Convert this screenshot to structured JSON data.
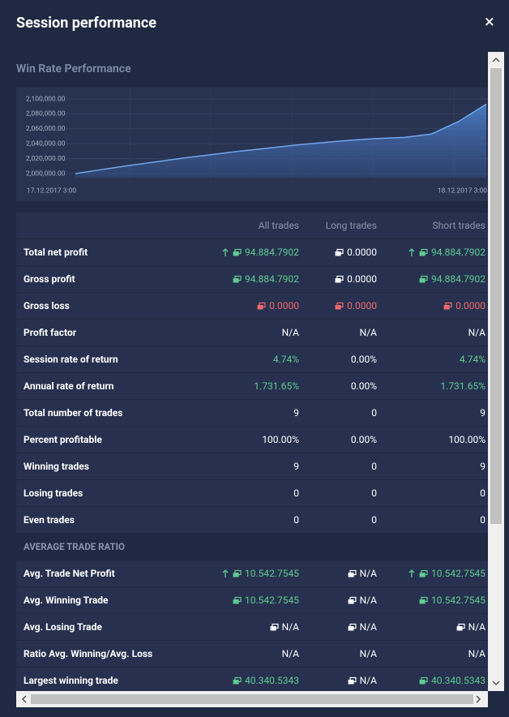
{
  "header": {
    "title": "Session performance",
    "close": "×"
  },
  "chart_section": {
    "title": "Win Rate Performance"
  },
  "chart_data": {
    "type": "area",
    "categories": [
      "17.12.2017 3:00",
      null,
      null,
      null,
      null,
      null,
      null,
      null,
      null,
      null,
      null,
      null,
      null,
      null,
      null,
      "18.12.2017 3:00"
    ],
    "series": [
      {
        "color": "#6fa6ec",
        "values": [
          2000000,
          2005500,
          2011000,
          2016000,
          2021000,
          2025500,
          2030000,
          2034000,
          2038000,
          2041500,
          2044500,
          2047000,
          2048500,
          2053000,
          2070000,
          2093000
        ]
      }
    ],
    "ylim": [
      1995000,
      2105000
    ],
    "yticks": [
      {
        "value": 2000000,
        "label": "2,000,000.00"
      },
      {
        "value": 2020000,
        "label": "2,020,000.00"
      },
      {
        "value": 2040000,
        "label": "2,040,000.00"
      },
      {
        "value": 2060000,
        "label": "2,060,000.00"
      },
      {
        "value": 2080000,
        "label": "2,080,000.00"
      },
      {
        "value": 2100000,
        "label": "2,100,000.00"
      }
    ],
    "grid": true
  },
  "table": {
    "columns": [
      "All trades",
      "Long trades",
      "Short trades"
    ],
    "rows": [
      {
        "label": "Total net profit",
        "cells": [
          {
            "text": "94.884.7902",
            "icon": "up-money",
            "color": "#5fcb92"
          },
          {
            "text": "0.0000",
            "icon": "money"
          },
          {
            "text": "94.884.7902",
            "icon": "up-money",
            "color": "#5fcb92"
          }
        ]
      },
      {
        "label": "Gross profit",
        "cells": [
          {
            "text": "94.884.7902",
            "icon": "money",
            "color": "#5fcb92"
          },
          {
            "text": "0.0000",
            "icon": "money"
          },
          {
            "text": "94.884.7902",
            "icon": "money",
            "color": "#5fcb92"
          }
        ]
      },
      {
        "label": "Gross loss",
        "cells": [
          {
            "text": "0.0000",
            "icon": "money",
            "color": "#f06a6a"
          },
          {
            "text": "0.0000",
            "icon": "money",
            "color": "#f06a6a"
          },
          {
            "text": "0.0000",
            "icon": "money",
            "color": "#f06a6a"
          }
        ]
      },
      {
        "label": "Profit factor",
        "cells": [
          {
            "text": "N/A"
          },
          {
            "text": "N/A"
          },
          {
            "text": "N/A"
          }
        ]
      },
      {
        "label": "Session rate of return",
        "cells": [
          {
            "text": "4.74%",
            "color": "#5fcb92"
          },
          {
            "text": "0.00%"
          },
          {
            "text": "4.74%",
            "color": "#5fcb92"
          }
        ]
      },
      {
        "label": "Annual rate of return",
        "cells": [
          {
            "text": "1.731.65%",
            "color": "#5fcb92"
          },
          {
            "text": "0.00%"
          },
          {
            "text": "1.731.65%",
            "color": "#5fcb92"
          }
        ]
      },
      {
        "label": "Total number of trades",
        "cells": [
          {
            "text": "9"
          },
          {
            "text": "0"
          },
          {
            "text": "9"
          }
        ]
      },
      {
        "label": "Percent profitable",
        "cells": [
          {
            "text": "100.00%"
          },
          {
            "text": "0.00%"
          },
          {
            "text": "100.00%"
          }
        ]
      },
      {
        "label": "Winning trades",
        "cells": [
          {
            "text": "9"
          },
          {
            "text": "0"
          },
          {
            "text": "9"
          }
        ]
      },
      {
        "label": "Losing trades",
        "cells": [
          {
            "text": "0"
          },
          {
            "text": "0"
          },
          {
            "text": "0"
          }
        ]
      },
      {
        "label": "Even trades",
        "cells": [
          {
            "text": "0"
          },
          {
            "text": "0"
          },
          {
            "text": "0"
          }
        ]
      }
    ]
  },
  "ratio_table": {
    "title": "AVERAGE TRADE RATIO",
    "rows": [
      {
        "label": "Avg. Trade Net Profit",
        "cells": [
          {
            "text": "10.542.7545",
            "icon": "up-money",
            "color": "#5fcb92"
          },
          {
            "text": "N/A",
            "icon": "money"
          },
          {
            "text": "10.542.7545",
            "icon": "up-money",
            "color": "#5fcb92"
          }
        ]
      },
      {
        "label": "Avg. Winning Trade",
        "cells": [
          {
            "text": "10.542.7545",
            "icon": "money",
            "color": "#5fcb92"
          },
          {
            "text": "N/A",
            "icon": "money"
          },
          {
            "text": "10.542.7545",
            "icon": "money",
            "color": "#5fcb92"
          }
        ]
      },
      {
        "label": "Avg. Losing Trade",
        "cells": [
          {
            "text": "N/A",
            "icon": "money"
          },
          {
            "text": "N/A",
            "icon": "money"
          },
          {
            "text": "N/A",
            "icon": "money"
          }
        ]
      },
      {
        "label": "Ratio Avg. Winning/Avg. Loss",
        "cells": [
          {
            "text": "N/A"
          },
          {
            "text": "N/A"
          },
          {
            "text": "N/A"
          }
        ]
      },
      {
        "label": "Largest winning trade",
        "cells": [
          {
            "text": "40.340.5343",
            "icon": "money",
            "color": "#5fcb92"
          },
          {
            "text": "N/A",
            "icon": "money"
          },
          {
            "text": "40.340.5343",
            "icon": "money",
            "color": "#5fcb92"
          }
        ]
      }
    ]
  }
}
